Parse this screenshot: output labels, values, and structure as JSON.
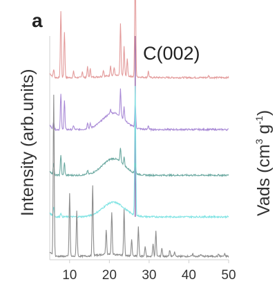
{
  "panel_label": "a",
  "chart_data": {
    "type": "line",
    "title": "",
    "xlabel": "",
    "ylabel": "Intensity (arb.units)",
    "secondary_ylabel": {
      "main": "Vads (cm",
      "sup1": "3",
      "mid": " g",
      "sup2": "-1",
      "end": ")"
    },
    "xlim": [
      5,
      50
    ],
    "ylim": [
      0,
      1
    ],
    "xticks": [
      10,
      20,
      30,
      40,
      50
    ],
    "xtick_labels": [
      "10",
      "20",
      "30",
      "40",
      "50"
    ],
    "grid": false,
    "legend": "none",
    "stacked_offsets": true,
    "annotations": [
      {
        "text": "C(002)",
        "x": 26.5
      }
    ],
    "reference_line": {
      "x": 26.5,
      "color": "#9a6fb0"
    },
    "series": [
      {
        "color": "#e39a9a",
        "baseline": 0.86,
        "hump": {
          "center": 22,
          "width": 5,
          "height": 0.01
        },
        "peaks": [
          [
            6.0,
            0.04
          ],
          [
            7.8,
            0.32
          ],
          [
            8.7,
            0.22
          ],
          [
            11.0,
            0.03
          ],
          [
            13.2,
            0.03
          ],
          [
            14.5,
            0.05
          ],
          [
            15.2,
            0.04
          ],
          [
            18.5,
            0.03
          ],
          [
            20.3,
            0.05
          ],
          [
            21.2,
            0.04
          ],
          [
            22.8,
            0.25
          ],
          [
            23.7,
            0.14
          ],
          [
            24.5,
            0.08
          ],
          [
            26.5,
            0.56
          ],
          [
            29.8,
            0.03
          ],
          [
            45.0,
            0.01
          ]
        ]
      },
      {
        "color": "#a98ad6",
        "baseline": 0.61,
        "hump": {
          "center": 21,
          "width": 3.8,
          "height": 0.08
        },
        "peaks": [
          [
            6.0,
            0.04
          ],
          [
            7.8,
            0.17
          ],
          [
            8.7,
            0.14
          ],
          [
            11.0,
            0.02
          ],
          [
            14.5,
            0.03
          ],
          [
            15.2,
            0.02
          ],
          [
            20.3,
            0.02
          ],
          [
            22.8,
            0.13
          ],
          [
            23.7,
            0.06
          ],
          [
            26.5,
            0.12
          ],
          [
            29.8,
            0.02
          ]
        ]
      },
      {
        "color": "#6aa8a0",
        "baseline": 0.39,
        "hump": {
          "center": 21,
          "width": 3.8,
          "height": 0.08
        },
        "peaks": [
          [
            6.0,
            0.06
          ],
          [
            7.8,
            0.1
          ],
          [
            8.7,
            0.06
          ],
          [
            14.5,
            0.02
          ],
          [
            22.8,
            0.07
          ],
          [
            23.7,
            0.04
          ],
          [
            26.5,
            0.05
          ]
        ]
      },
      {
        "color": "#7fe3e3",
        "baseline": 0.19,
        "hump": {
          "center": 21,
          "width": 3.8,
          "height": 0.07
        },
        "peaks": [
          [
            6.0,
            0.05
          ],
          [
            7.8,
            0.02
          ],
          [
            26.5,
            0.62
          ]
        ]
      },
      {
        "color": "#8a8a8a",
        "baseline": 0.0,
        "hump": {
          "center": 20,
          "width": 4,
          "height": 0.01
        },
        "peaks": [
          [
            6.0,
            0.78
          ],
          [
            10.0,
            0.3
          ],
          [
            11.8,
            0.22
          ],
          [
            15.8,
            0.34
          ],
          [
            19.2,
            0.12
          ],
          [
            20.6,
            0.2
          ],
          [
            23.7,
            0.22
          ],
          [
            25.6,
            0.08
          ],
          [
            27.3,
            0.14
          ],
          [
            29.0,
            0.05
          ],
          [
            31.0,
            0.06
          ],
          [
            31.7,
            0.12
          ],
          [
            33.2,
            0.04
          ],
          [
            35.2,
            0.03
          ],
          [
            36.4,
            0.02
          ],
          [
            41.0,
            0.01
          ],
          [
            43.0,
            0.01
          ],
          [
            47.5,
            0.01
          ],
          [
            49.0,
            0.01
          ]
        ]
      }
    ]
  }
}
